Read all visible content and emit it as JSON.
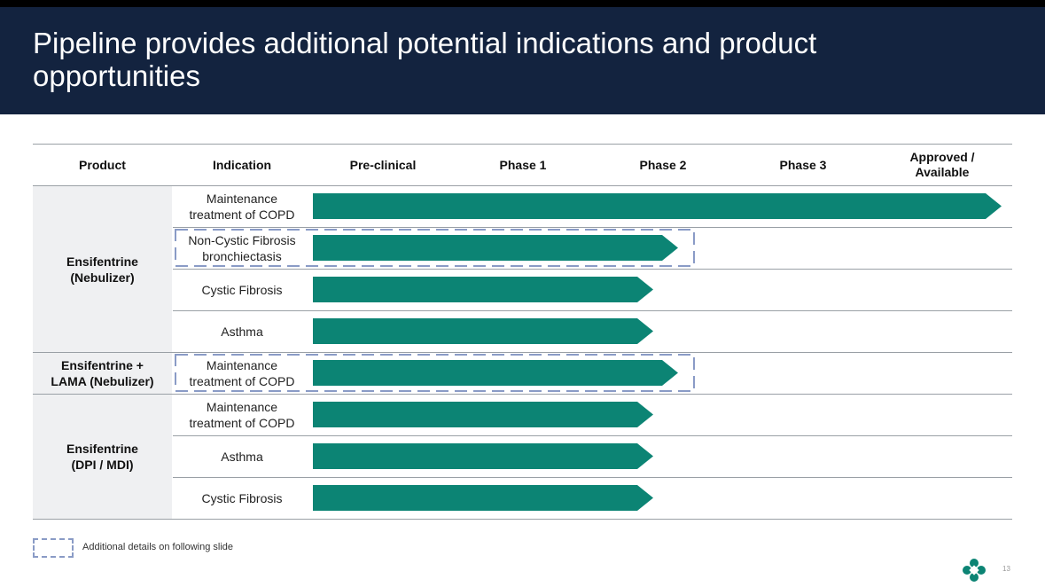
{
  "slide": {
    "title": "Pipeline provides additional potential indications and product opportunities",
    "page_number": "13"
  },
  "table": {
    "headers": [
      "Product",
      "Indication",
      "Pre-clinical",
      "Phase 1",
      "Phase 2",
      "Phase 3",
      "Approved / Available"
    ],
    "products": [
      {
        "name": "Ensifentrine (Nebulizer)"
      },
      {
        "name": "Ensifentrine + LAMA (Nebulizer)"
      },
      {
        "name": "Ensifentrine (DPI / MDI)"
      }
    ],
    "rows": [
      {
        "indication": "Maintenance treatment of COPD",
        "stage": "Approved / Available",
        "additional_details": false
      },
      {
        "indication": "Non-Cystic Fibrosis bronchiectasis",
        "stage": "Phase 2",
        "additional_details": true
      },
      {
        "indication": "Cystic Fibrosis",
        "stage": "Phase 2",
        "additional_details": false
      },
      {
        "indication": "Asthma",
        "stage": "Phase 2",
        "additional_details": false
      },
      {
        "indication": "Maintenance treatment of COPD",
        "stage": "Phase 2",
        "additional_details": true
      },
      {
        "indication": "Maintenance treatment of COPD",
        "stage": "Phase 2",
        "additional_details": false
      },
      {
        "indication": "Asthma",
        "stage": "Phase 2",
        "additional_details": false
      },
      {
        "indication": "Cystic Fibrosis",
        "stage": "Phase 2",
        "additional_details": false
      }
    ]
  },
  "legend": {
    "text": "Additional details on following slide"
  },
  "colors": {
    "header_bg": "#13233f",
    "bar": "#0c8474",
    "dashed": "#8a9bc6",
    "product_bg": "#eff0f2"
  }
}
